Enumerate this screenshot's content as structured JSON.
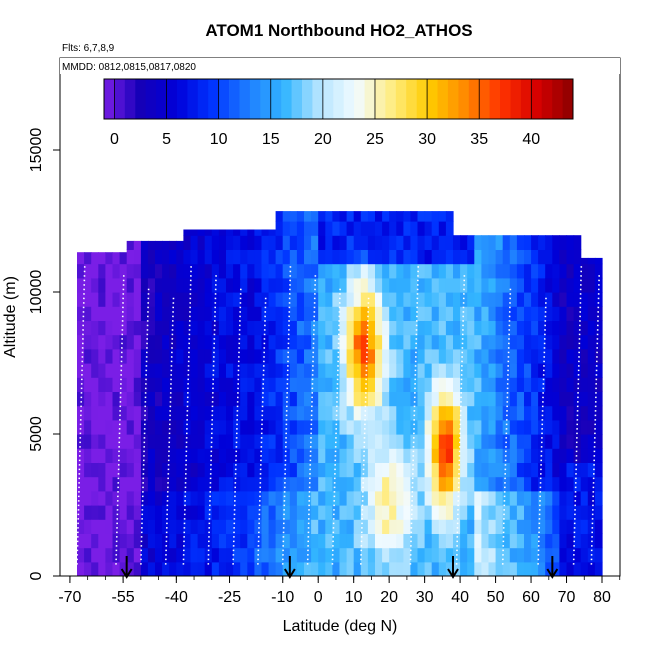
{
  "chart_data": {
    "type": "heatmap",
    "title": "ATOM1 Northbound HO2_ATHOS",
    "subtitle_flights": "Flts: 6,7,8,9",
    "subtitle_dates": "MMDD: 0812,0815,0817,0820",
    "xlabel": "Latitude (deg N)",
    "ylabel": "Altitude (m)",
    "xlim": [
      -70,
      85
    ],
    "ylim": [
      0,
      17800
    ],
    "x_ticks": [
      -70,
      -55,
      -40,
      -25,
      -10,
      0,
      10,
      20,
      30,
      40,
      50,
      60,
      70,
      80
    ],
    "y_ticks": [
      0,
      5000,
      10000,
      15000
    ],
    "colorbar": {
      "ticks": [
        0,
        5,
        10,
        15,
        20,
        25,
        30,
        35,
        40
      ],
      "range": [
        -1,
        44
      ],
      "colors": [
        "#7a1ee6",
        "#1500b8",
        "#0000d8",
        "#0033ff",
        "#1e7dff",
        "#33b5ff",
        "#b8e6ff",
        "#f2fbff",
        "#ffec80",
        "#ffcc00",
        "#ff8a00",
        "#ff3300",
        "#d60000",
        "#8b0000"
      ]
    },
    "grid": false,
    "legend": "colorbar-top",
    "arrow_latitudes": [
      -54,
      -8,
      38,
      66
    ],
    "profile_latitudes": [
      -68,
      -57,
      -50,
      -43,
      -38,
      -31,
      -24,
      -17,
      -10,
      -3,
      4,
      12,
      26,
      39,
      52,
      62,
      72,
      77
    ]
  }
}
